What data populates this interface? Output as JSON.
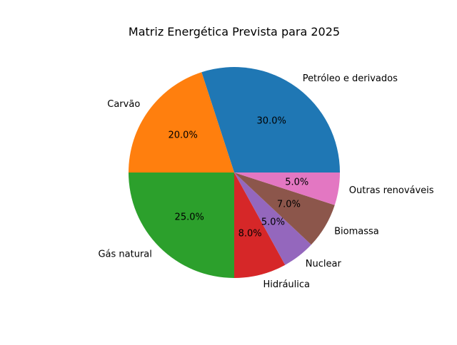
{
  "chart_data": {
    "type": "pie",
    "title": "Matriz Energética Prevista para 2025",
    "categories": [
      "Petróleo e derivados",
      "Carvão",
      "Gás natural",
      "Hidráulica",
      "Nuclear",
      "Biomassa",
      "Outras renováveis"
    ],
    "values": [
      30,
      20,
      25,
      8,
      5,
      7,
      5
    ],
    "value_labels": [
      "30.0%",
      "20.0%",
      "25.0%",
      "8.0%",
      "5.0%",
      "7.0%",
      "5.0%"
    ],
    "colors": [
      "#1f77b4",
      "#ff7f0e",
      "#2ca02c",
      "#d62728",
      "#9467bd",
      "#8c564b",
      "#e377c2"
    ],
    "start_angle_deg": 0,
    "direction": "counterclockwise",
    "legend": "none"
  }
}
